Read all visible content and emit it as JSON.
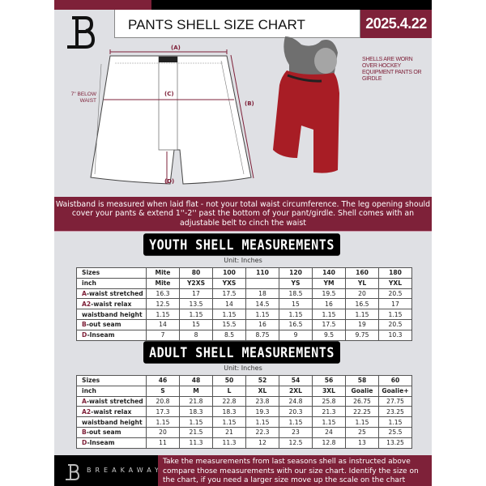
{
  "header": {
    "title": "PANTS SHELL SIZE CHART",
    "date": "2025.4.22"
  },
  "diagram": {
    "label_a": "(A)",
    "label_b": "(B)",
    "label_c": "(C)",
    "label_d": "(D)",
    "below_waist": "7'' BELOW WAIST",
    "note": "SHELLS ARE WORN OVER HOCKEY EQUIPMENT PANTS OR GIRDLE"
  },
  "banner": "Waistband is measured when laid flat - not your total waist circumference. The leg opening should cover your pants & extend 1''-2'' past the bottom of your pant/girdle. Shell comes with an adjustable belt to cinch the waist",
  "youth": {
    "title": "YOUTH SHELL MEASUREMENTS",
    "unit": "Unit: Inches",
    "rows": [
      {
        "pre": "",
        "label": "Sizes",
        "cells": [
          "Mite",
          "80",
          "100",
          "110",
          "120",
          "140",
          "160",
          "180"
        ]
      },
      {
        "pre": "",
        "label": "inch",
        "cells": [
          "Mite",
          "Y2XS",
          "YXS",
          "",
          "YS",
          "YM",
          "YL",
          "YXL"
        ]
      },
      {
        "pre": "A",
        "label": "-waist stretched",
        "cells": [
          "16.3",
          "17",
          "17.5",
          "18",
          "18.5",
          "19.5",
          "20",
          "20.5"
        ]
      },
      {
        "pre": "A2",
        "label": "-waist relax",
        "cells": [
          "12.5",
          "13.5",
          "14",
          "14.5",
          "15",
          "16",
          "16.5",
          "17"
        ]
      },
      {
        "pre": "",
        "label": "waistband height",
        "cells": [
          "1.15",
          "1.15",
          "1.15",
          "1.15",
          "1.15",
          "1.15",
          "1.15",
          "1.15"
        ]
      },
      {
        "pre": "B",
        "label": "-out seam",
        "cells": [
          "14",
          "15",
          "15.5",
          "16",
          "16.5",
          "17.5",
          "19",
          "20.5"
        ]
      },
      {
        "pre": "D",
        "label": "-Inseam",
        "cells": [
          "7",
          "8",
          "8.5",
          "8.75",
          "9",
          "9.5",
          "9.75",
          "10.3"
        ]
      }
    ]
  },
  "adult": {
    "title": "ADULT SHELL MEASUREMENTS",
    "unit": "Unit: Inches",
    "rows": [
      {
        "pre": "",
        "label": "Sizes",
        "cells": [
          "46",
          "48",
          "50",
          "52",
          "54",
          "56",
          "58",
          "60"
        ]
      },
      {
        "pre": "",
        "label": "inch",
        "cells": [
          "S",
          "M",
          "L",
          "XL",
          "2XL",
          "3XL",
          "Goalie",
          "Goalie+"
        ]
      },
      {
        "pre": "A",
        "label": "-waist stretched",
        "cells": [
          "20.8",
          "21.8",
          "22.8",
          "23.8",
          "24.8",
          "25.8",
          "26.75",
          "27.75"
        ]
      },
      {
        "pre": "A2",
        "label": "-waist relax",
        "cells": [
          "17.3",
          "18.3",
          "18.3",
          "19.3",
          "20.3",
          "21.3",
          "22.25",
          "23.25"
        ]
      },
      {
        "pre": "",
        "label": "waistband height",
        "cells": [
          "1.15",
          "1.15",
          "1.15",
          "1.15",
          "1.15",
          "1.15",
          "1.15",
          "1.15"
        ]
      },
      {
        "pre": "B",
        "label": "-out seam",
        "cells": [
          "20",
          "21.5",
          "21",
          "22.3",
          "23",
          "24",
          "25",
          "25.5"
        ]
      },
      {
        "pre": "D",
        "label": "-Inseam",
        "cells": [
          "11",
          "11.3",
          "11.3",
          "12",
          "12.5",
          "12.8",
          "13",
          "13.25"
        ]
      }
    ]
  },
  "footer": {
    "brand": "BREAKAWAY",
    "text": "Take the measurements from last seasons shell as instructed above compare those measurements  with our size chart. Identify the size on the chart, if you need a larger size move up the scale on the chart"
  },
  "colors": {
    "accent": "#7e2139",
    "background": "#dfe0e4",
    "dark": "#000000"
  }
}
